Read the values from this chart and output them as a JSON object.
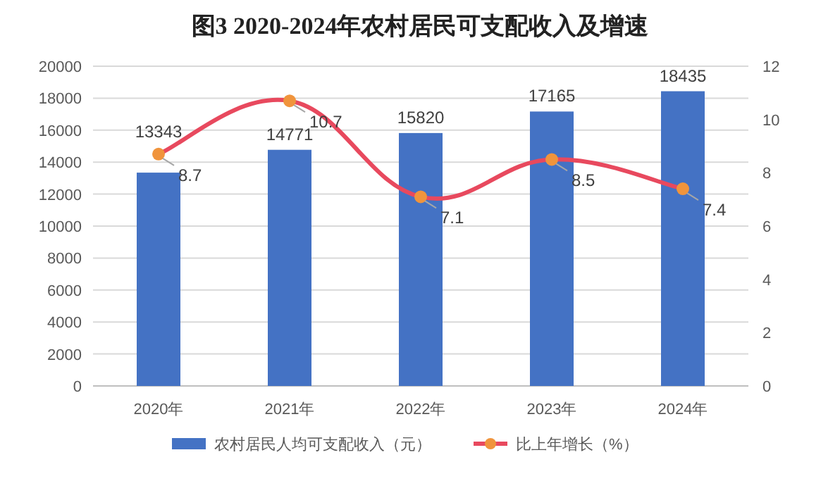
{
  "chart_data": {
    "type": "bar",
    "title": "图3  2020-2024年农村居民可支配收入及增速",
    "categories": [
      "2020年",
      "2021年",
      "2022年",
      "2023年",
      "2024年"
    ],
    "series": [
      {
        "name": "农村居民人均可支配收入（元）",
        "color": "#4472c4",
        "values": [
          13343,
          14771,
          15820,
          17165,
          18435
        ]
      },
      {
        "name": "比上年增长（%）",
        "type": "line",
        "axis": "y2",
        "color": "#e8495e",
        "colors": [
          "#f0943c",
          "#f0943c",
          "#f0943c",
          "#f0943c",
          "#f0943c"
        ],
        "marker": "circle",
        "values": [
          8.7,
          10.7,
          7.1,
          8.5,
          7.4
        ]
      }
    ],
    "ylim": [
      0,
      20000
    ],
    "yticks": [
      0,
      2000,
      4000,
      6000,
      8000,
      10000,
      12000,
      14000,
      16000,
      18000,
      20000
    ],
    "y2lim": [
      0,
      12
    ],
    "y2ticks": [
      0,
      2,
      4,
      6,
      8,
      10,
      12
    ],
    "grid": "y",
    "legend": "bottom",
    "data_labels": true
  }
}
